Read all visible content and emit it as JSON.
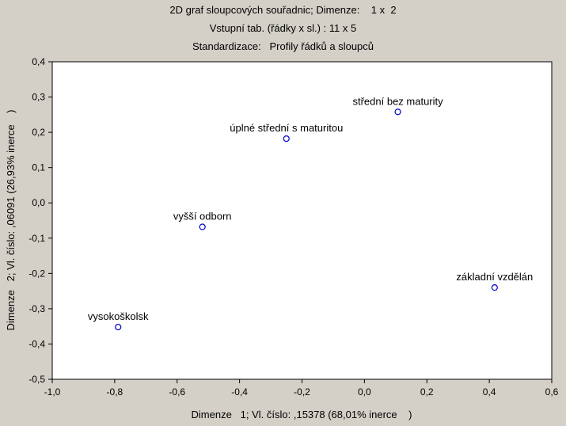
{
  "chart_data": {
    "type": "scatter",
    "title_lines": [
      "2D graf sloupcových souřadnic; Dimenze:    1 x  2",
      "Vstupní tab. (řádky x sl.) : 11 x 5",
      "Standardizace:   Profily řádků a sloupců"
    ],
    "xlabel": "Dimenze   1; Vl. číslo: ,15378 (68,01% inerce    )",
    "ylabel": "Dimenze   2; Vl. číslo: ,06091 (26,93% inerce    )",
    "xlim": [
      -1.0,
      0.6
    ],
    "ylim": [
      -0.5,
      0.4
    ],
    "x_ticks": [
      -1.0,
      -0.8,
      -0.6,
      -0.4,
      -0.2,
      0.0,
      0.2,
      0.4,
      0.6
    ],
    "x_tick_labels": [
      "-1,0",
      "-0,8",
      "-0,6",
      "-0,4",
      "-0,2",
      "0,0",
      "0,2",
      "0,4",
      "0,6"
    ],
    "y_ticks": [
      0.4,
      0.3,
      0.2,
      0.1,
      0.0,
      -0.1,
      -0.2,
      -0.3,
      -0.4,
      -0.5
    ],
    "y_tick_labels": [
      "0,4",
      "0,3",
      "0,2",
      "0,1",
      "0,0",
      "-0,1",
      "-0,2",
      "-0,3",
      "-0,4",
      "-0,5"
    ],
    "grid": false,
    "marker_color": "#0000cc",
    "points": [
      {
        "label": "střední bez maturity",
        "x": 0.107,
        "y": 0.258
      },
      {
        "label": "úplné střední s maturitou",
        "x": -0.25,
        "y": 0.182
      },
      {
        "label": "vyšší odborn",
        "x": -0.519,
        "y": -0.068
      },
      {
        "label": "základní vzdělán",
        "x": 0.417,
        "y": -0.24
      },
      {
        "label": "vysokoškolsk",
        "x": -0.789,
        "y": -0.352
      }
    ]
  }
}
